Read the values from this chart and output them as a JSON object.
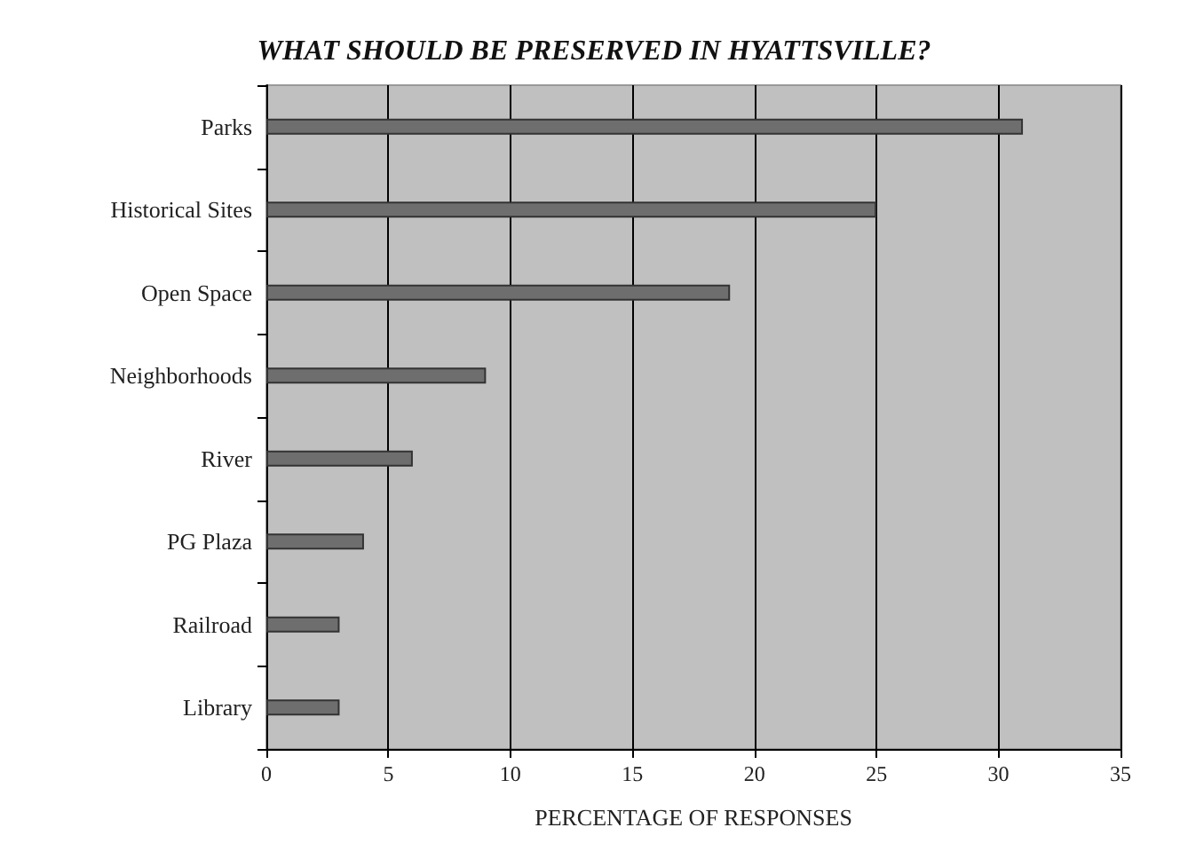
{
  "chart_data": {
    "type": "bar",
    "orientation": "horizontal",
    "title": "WHAT SHOULD BE PRESERVED IN HYATTSVILLE?",
    "xlabel": "PERCENTAGE OF RESPONSES",
    "categories": [
      "Parks",
      "Historical Sites",
      "Open Space",
      "Neighborhoods",
      "River",
      "PG Plaza",
      "Railroad",
      "Library"
    ],
    "values": [
      31,
      25,
      19,
      9,
      6,
      4,
      3,
      3
    ],
    "color": "#6e6e6e",
    "xlim": [
      0,
      35
    ],
    "xticks": [
      0,
      5,
      10,
      15,
      20,
      25,
      30,
      35
    ],
    "grid": "x"
  }
}
